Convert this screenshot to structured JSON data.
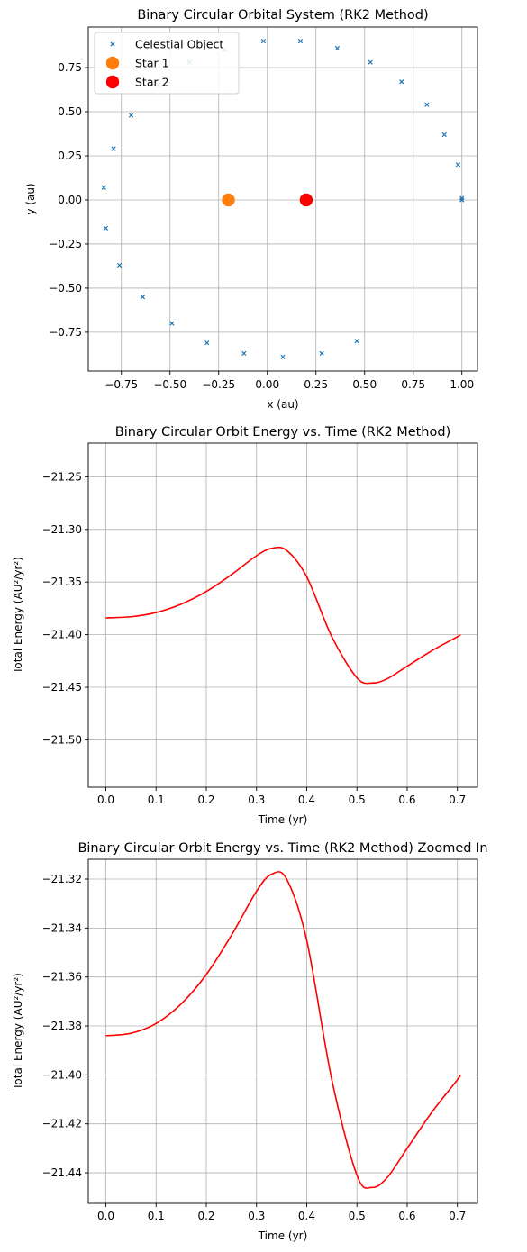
{
  "chart_data": [
    {
      "type": "scatter",
      "title": "Binary Circular Orbital System (RK2 Method)",
      "xlabel": "x (au)",
      "ylabel": "y (au)",
      "xlim": [
        -0.92,
        1.08
      ],
      "ylim": [
        -0.97,
        0.98
      ],
      "xticks": [
        -0.75,
        -0.5,
        -0.25,
        0.0,
        0.25,
        0.5,
        0.75,
        1.0
      ],
      "xtick_labels": [
        "−0.75",
        "−0.50",
        "−0.25",
        "0.00",
        "0.25",
        "0.50",
        "0.75",
        "1.00"
      ],
      "yticks": [
        -0.75,
        -0.5,
        -0.25,
        0.0,
        0.25,
        0.5,
        0.75
      ],
      "yticks_labels": [
        "−0.75",
        "−0.50",
        "−0.25",
        "0.00",
        "0.25",
        "0.50",
        "0.75"
      ],
      "grid": true,
      "legend_position": "top-left",
      "series": [
        {
          "name": "Celestial Object",
          "marker": "x",
          "color": "#1f77b4",
          "points": [
            [
              1.0,
              0.0
            ],
            [
              1.0,
              0.01
            ],
            [
              0.98,
              0.2
            ],
            [
              0.91,
              0.37
            ],
            [
              0.82,
              0.54
            ],
            [
              0.69,
              0.67
            ],
            [
              0.53,
              0.78
            ],
            [
              0.36,
              0.86
            ],
            [
              0.17,
              0.9
            ],
            [
              -0.02,
              0.9
            ],
            [
              -0.22,
              0.85
            ],
            [
              -0.4,
              0.78
            ],
            [
              -0.56,
              0.65
            ],
            [
              -0.7,
              0.48
            ],
            [
              -0.79,
              0.29
            ],
            [
              -0.84,
              0.07
            ],
            [
              -0.83,
              -0.16
            ],
            [
              -0.76,
              -0.37
            ],
            [
              -0.64,
              -0.55
            ],
            [
              -0.49,
              -0.7
            ],
            [
              -0.31,
              -0.81
            ],
            [
              -0.12,
              -0.87
            ],
            [
              0.08,
              -0.89
            ],
            [
              0.28,
              -0.87
            ],
            [
              0.46,
              -0.8
            ]
          ]
        },
        {
          "name": "Star 1",
          "marker": "o",
          "color": "#ff7f0e",
          "points": [
            [
              -0.2,
              0.0
            ]
          ]
        },
        {
          "name": "Star 2",
          "marker": "o",
          "color": "#ff0000",
          "points": [
            [
              0.2,
              0.0
            ]
          ]
        }
      ]
    },
    {
      "type": "line",
      "title": "Binary Circular Orbit Energy vs. Time (RK2 Method)",
      "xlabel": "Time (yr)",
      "ylabel": "Total Energy (AU²/yr²)",
      "xlim": [
        -0.035,
        0.74
      ],
      "ylim": [
        -21.545,
        -21.218
      ],
      "xticks": [
        0.0,
        0.1,
        0.2,
        0.3,
        0.4,
        0.5,
        0.6,
        0.7
      ],
      "xtick_labels": [
        "0.0",
        "0.1",
        "0.2",
        "0.3",
        "0.4",
        "0.5",
        "0.6",
        "0.7"
      ],
      "yticks": [
        -21.5,
        -21.45,
        -21.4,
        -21.35,
        -21.3,
        -21.25
      ],
      "ytick_labels": [
        "−21.50",
        "−21.45",
        "−21.40",
        "−21.35",
        "−21.30",
        "−21.25"
      ],
      "grid": true,
      "series": [
        {
          "color": "#ff0000",
          "x": [
            0.0,
            0.05,
            0.1,
            0.15,
            0.2,
            0.25,
            0.3,
            0.33,
            0.36,
            0.4,
            0.45,
            0.5,
            0.53,
            0.56,
            0.6,
            0.65,
            0.7,
            0.705
          ],
          "y": [
            -21.384,
            -21.383,
            -21.379,
            -21.371,
            -21.359,
            -21.343,
            -21.325,
            -21.318,
            -21.32,
            -21.345,
            -21.402,
            -21.441,
            -21.446,
            -21.442,
            -21.43,
            -21.415,
            -21.402,
            -21.4
          ]
        }
      ]
    },
    {
      "type": "line",
      "title": "Binary Circular Orbit Energy vs. Time (RK2 Method) Zoomed In",
      "xlabel": "Time (yr)",
      "ylabel": "Total Energy (AU²/yr²)",
      "xlim": [
        -0.035,
        0.74
      ],
      "ylim": [
        -21.4525,
        -21.3119
      ],
      "xticks": [
        0.0,
        0.1,
        0.2,
        0.3,
        0.4,
        0.5,
        0.6,
        0.7
      ],
      "xtick_labels": [
        "0.0",
        "0.1",
        "0.2",
        "0.3",
        "0.4",
        "0.5",
        "0.6",
        "0.7"
      ],
      "yticks": [
        -21.44,
        -21.42,
        -21.4,
        -21.38,
        -21.36,
        -21.34,
        -21.32
      ],
      "ytick_labels": [
        "−21.44",
        "−21.42",
        "−21.40",
        "−21.38",
        "−21.36",
        "−21.34",
        "−21.32"
      ],
      "grid": true,
      "series": [
        {
          "color": "#ff0000",
          "x": [
            0.0,
            0.05,
            0.1,
            0.15,
            0.2,
            0.25,
            0.3,
            0.33,
            0.36,
            0.4,
            0.45,
            0.5,
            0.53,
            0.56,
            0.6,
            0.65,
            0.7,
            0.705
          ],
          "y": [
            -21.384,
            -21.383,
            -21.379,
            -21.371,
            -21.359,
            -21.343,
            -21.325,
            -21.318,
            -21.32,
            -21.345,
            -21.402,
            -21.441,
            -21.446,
            -21.442,
            -21.43,
            -21.415,
            -21.402,
            -21.4
          ]
        }
      ]
    }
  ]
}
